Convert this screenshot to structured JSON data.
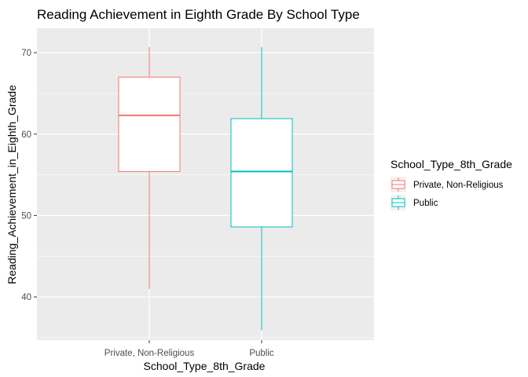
{
  "chart_data": {
    "type": "boxplot",
    "title": "Reading Achievement in Eighth Grade By School Type",
    "xlabel": "School_Type_8th_Grade",
    "ylabel": "Reading_Achievement_in_Eighth_Grade",
    "categories": [
      "Private, Non-Religious",
      "Public"
    ],
    "ylim": [
      34.7,
      73.0
    ],
    "yticks": [
      40,
      50,
      60,
      70
    ],
    "grid": true,
    "legend": {
      "title": "School_Type_8th_Grade",
      "position": "right",
      "items": [
        "Private, Non-Religious",
        "Public"
      ]
    },
    "series": [
      {
        "category": "Private, Non-Religious",
        "color": "#F8766D",
        "min": 41.0,
        "q1": 55.4,
        "median": 62.3,
        "q3": 67.0,
        "max": 70.7
      },
      {
        "category": "Public",
        "color": "#00BFC4",
        "min": 35.9,
        "q1": 48.6,
        "median": 55.4,
        "q3": 61.9,
        "max": 70.7
      }
    ],
    "colors": {
      "panel": "#EBEBEB",
      "grid": "#FFFFFF"
    }
  }
}
